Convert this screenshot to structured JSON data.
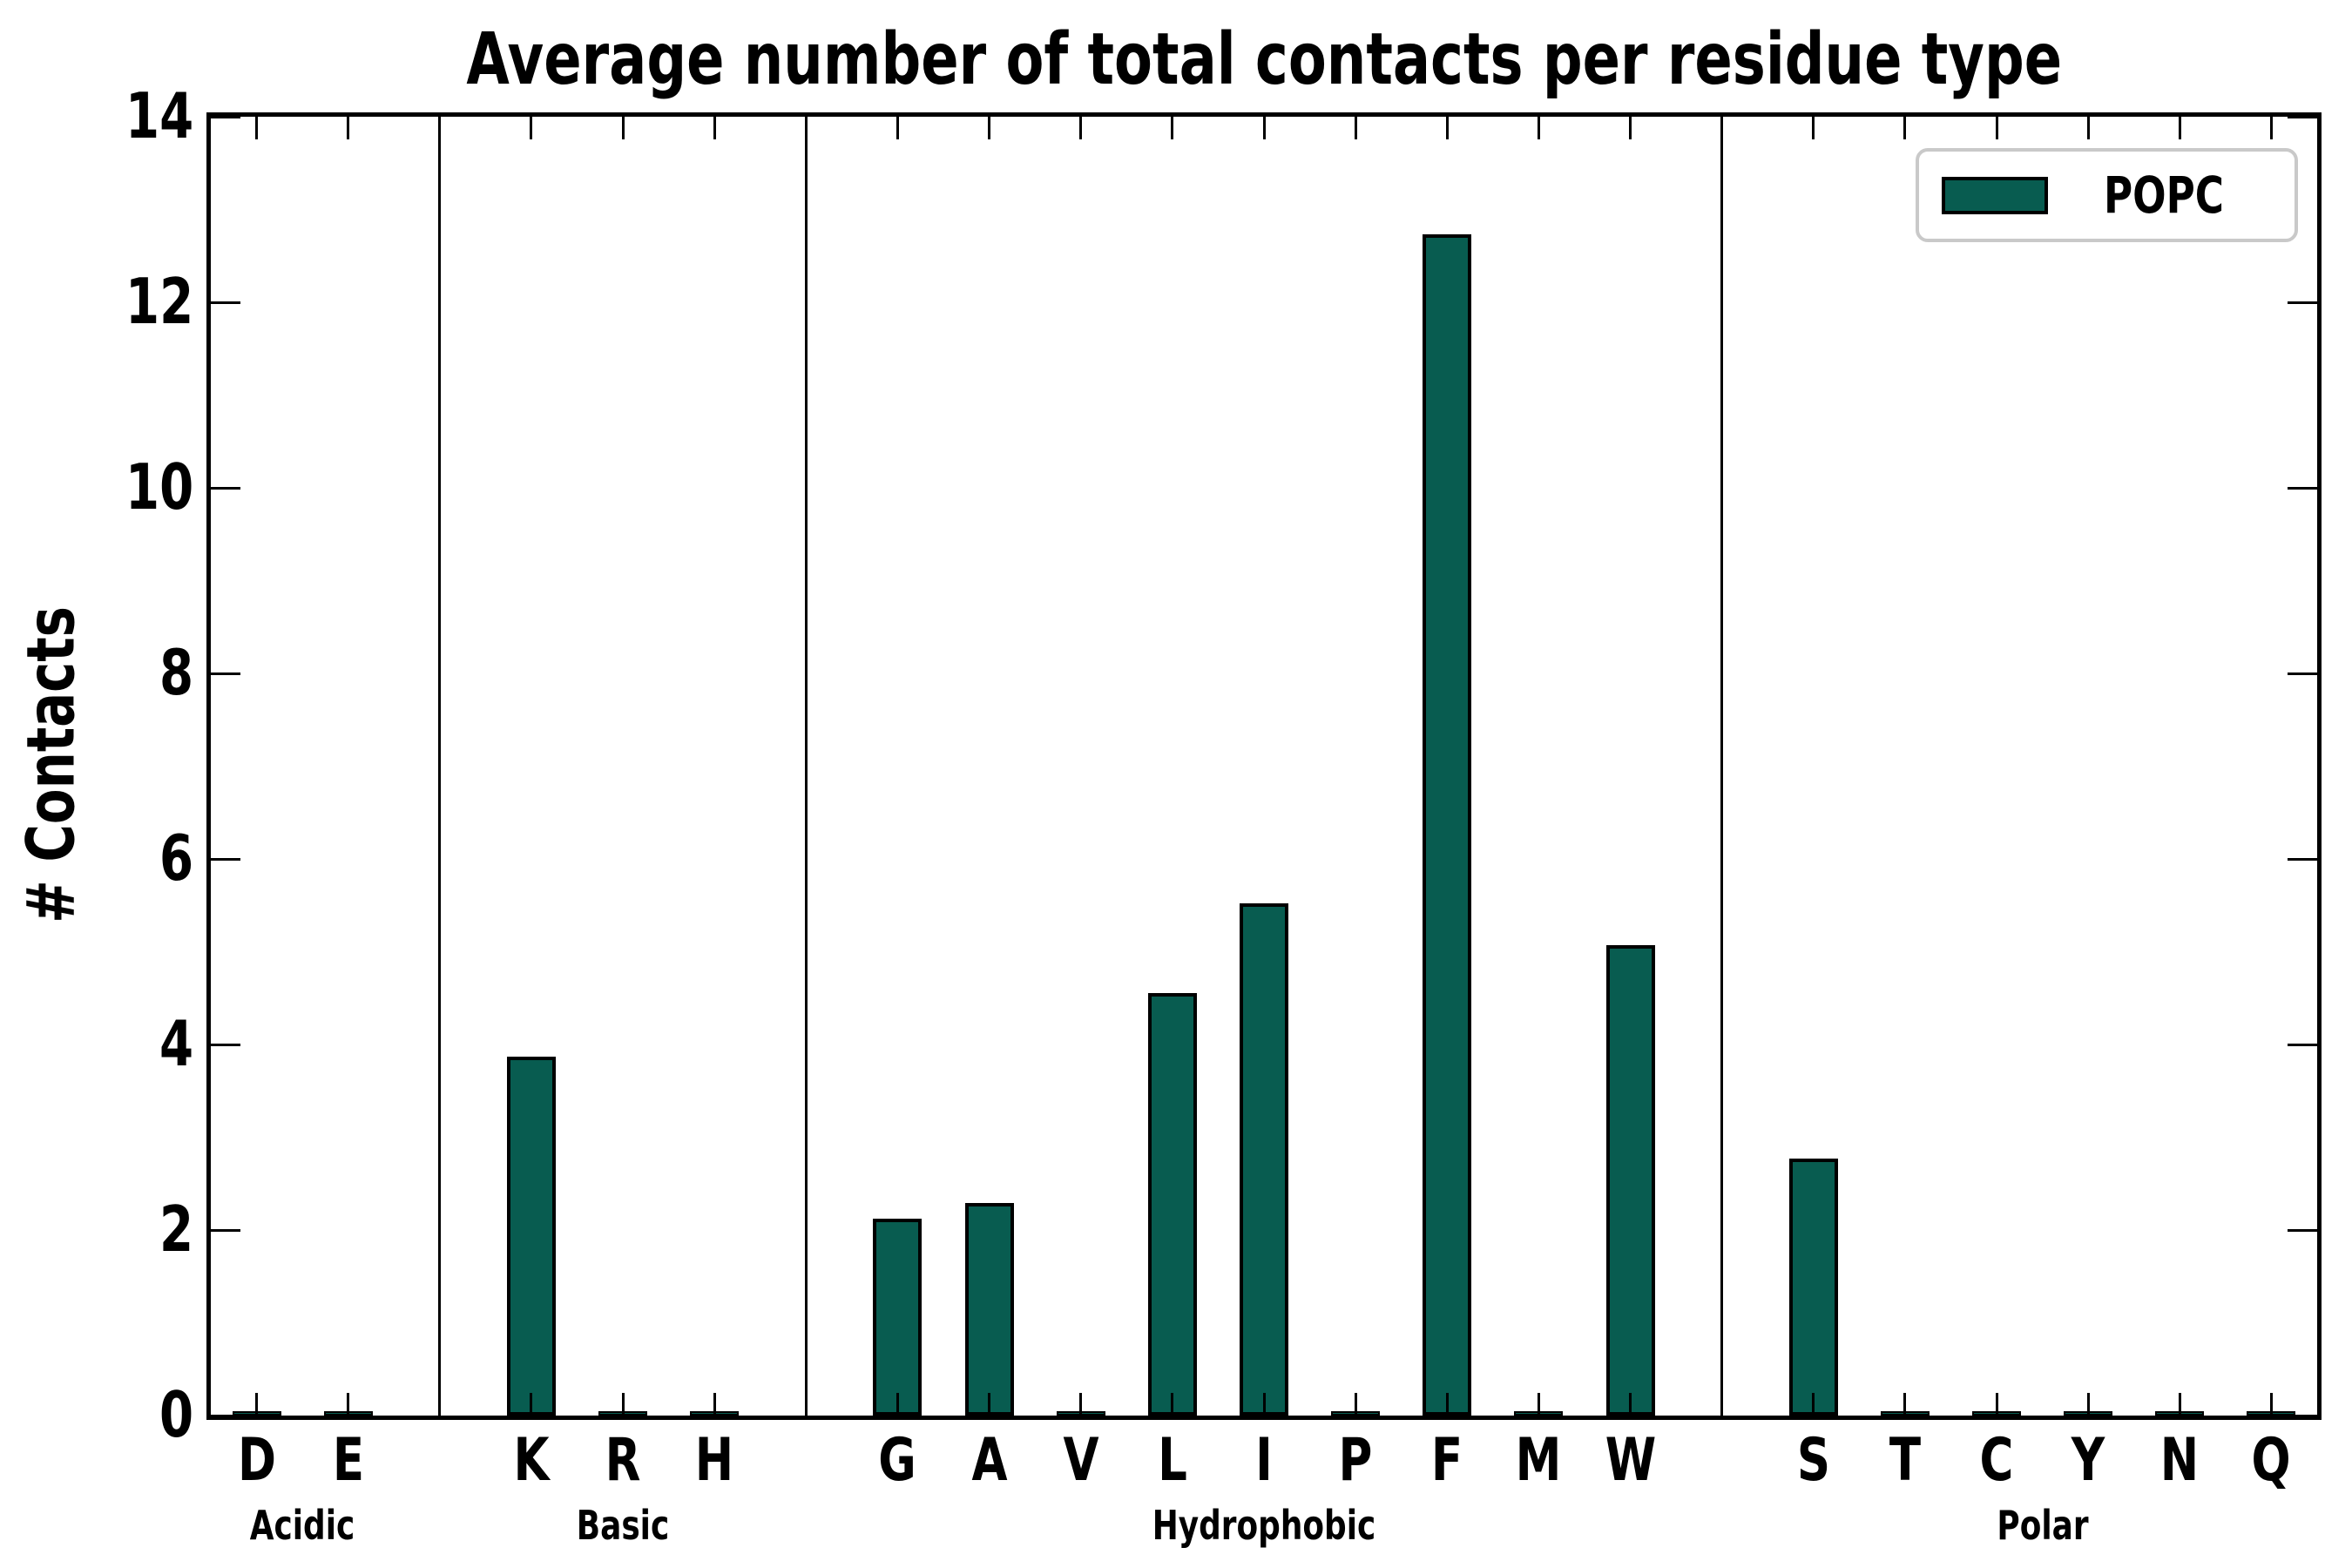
{
  "chart_data": {
    "type": "bar",
    "title": "Average number of total contacts per residue type",
    "ylabel": "# Contacts",
    "xlabel": "",
    "ylim": [
      0,
      14
    ],
    "yticks": [
      0,
      2,
      4,
      6,
      8,
      10,
      12,
      14
    ],
    "grid": false,
    "tick_direction": "in",
    "legend": {
      "label": "POPC",
      "position": "upper right"
    },
    "colors": {
      "bar_fill": "#085c50",
      "bar_edge": "#000000",
      "axis": "#000000",
      "legend_border": "#c9c9c9",
      "background": "#ffffff"
    },
    "series_name": "POPC",
    "groups": [
      {
        "name": "Acidic",
        "categories": [
          "D",
          "E"
        ],
        "values": [
          0.03,
          0.03
        ]
      },
      {
        "name": "Basic",
        "categories": [
          "K",
          "R",
          "H"
        ],
        "values": [
          3.87,
          0.03,
          0.03
        ]
      },
      {
        "name": "Hydrophobic",
        "categories": [
          "G",
          "A",
          "V",
          "L",
          "I",
          "P",
          "F",
          "M",
          "W"
        ],
        "values": [
          2.12,
          2.29,
          0.03,
          4.55,
          5.52,
          0.03,
          12.73,
          0.04,
          5.07
        ]
      },
      {
        "name": "Polar",
        "categories": [
          "S",
          "T",
          "C",
          "Y",
          "N",
          "Q"
        ],
        "values": [
          2.77,
          0.03,
          0.03,
          0.03,
          0.03,
          0.03
        ]
      }
    ]
  }
}
